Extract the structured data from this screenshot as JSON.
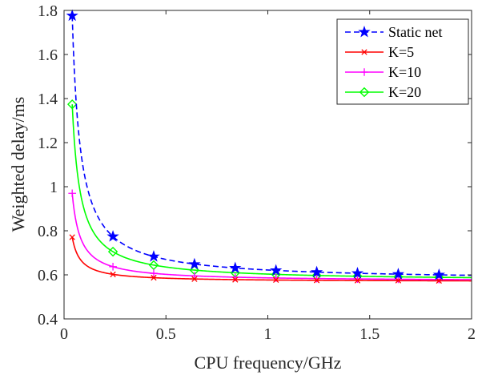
{
  "chart_data": {
    "type": "line",
    "xlabel": "CPU frequency/GHz",
    "ylabel": "Weighted delay/ms",
    "xlim": [
      0,
      2
    ],
    "ylim": [
      0.4,
      1.8
    ],
    "xticks": [
      "0",
      "0.5",
      "1",
      "1.5",
      "2"
    ],
    "yticks": [
      "0.4",
      "0.6",
      "0.8",
      "1",
      "1.2",
      "1.4",
      "1.6",
      "1.8"
    ],
    "grid": false,
    "legend_position": "top-right",
    "marker_x": [
      0.04,
      0.24,
      0.44,
      0.64,
      0.84,
      1.04,
      1.24,
      1.44,
      1.64,
      1.84
    ],
    "series": [
      {
        "name": "Static net",
        "color": "#0000ff",
        "line_style": "dashed",
        "marker": "star",
        "curve": {
          "a": 0.5738,
          "b": 0.0481
        },
        "marker_values": [
          1.776,
          0.774,
          0.683,
          0.648,
          0.631,
          0.62,
          0.612,
          0.607,
          0.603,
          0.6
        ]
      },
      {
        "name": "K=5",
        "color": "#ff0000",
        "line_style": "solid",
        "marker": "x",
        "curve": {
          "a": 0.5686,
          "b": 0.0081
        },
        "marker_values": [
          0.771,
          0.602,
          0.587,
          0.581,
          0.578,
          0.577,
          0.575,
          0.574,
          0.574,
          0.573
        ]
      },
      {
        "name": "K=10",
        "color": "#ff00ff",
        "line_style": "solid",
        "marker": "plus",
        "curve": {
          "a": 0.5703,
          "b": 0.016
        },
        "marker_values": [
          0.97,
          0.637,
          0.607,
          0.595,
          0.589,
          0.586,
          0.583,
          0.581,
          0.58,
          0.579
        ]
      },
      {
        "name": "K=20",
        "color": "#00ff00",
        "line_style": "solid",
        "marker": "diamond",
        "curve": {
          "a": 0.5713,
          "b": 0.0321
        },
        "marker_values": [
          1.374,
          0.705,
          0.644,
          0.621,
          0.609,
          0.602,
          0.597,
          0.594,
          0.591,
          0.589
        ]
      }
    ]
  }
}
